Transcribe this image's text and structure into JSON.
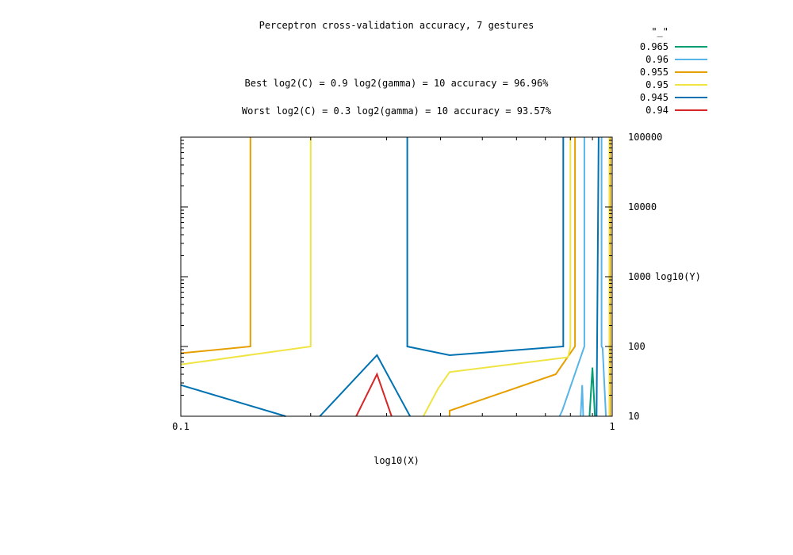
{
  "chart_data": {
    "type": "contour",
    "title": "Perceptron cross-validation accuracy, 7 gestures",
    "annotations": [
      "Best log2(C) = 0.9  log2(gamma) = 10  accuracy = 96.96%",
      "Worst log2(C) = 0.3  log2(gamma) = 10   accuracy = 93.57%"
    ],
    "xlabel": "log10(X)",
    "ylabel": "log10(Y)",
    "x_scale": "log",
    "y_scale": "log",
    "xlim": [
      0.1,
      1
    ],
    "ylim": [
      10,
      100000
    ],
    "x_tick_labels": [
      "0.1",
      "1"
    ],
    "y_tick_labels": [
      "10",
      "100",
      "1000",
      "10000",
      "100000"
    ],
    "legend_title": "\"_\"",
    "legend_position": "top-right",
    "series": [
      {
        "name": "0.965",
        "color": "#009e73",
        "lines": [
          [
            [
              0.886,
              10
            ],
            [
              0.9,
              50
            ],
            [
              0.912,
              10
            ]
          ]
        ]
      },
      {
        "name": "0.96",
        "color": "#56b4e9",
        "lines": [
          [
            [
              0.845,
              10
            ],
            [
              0.852,
              28
            ],
            [
              0.857,
              10
            ]
          ],
          [
            [
              0.755,
              10
            ],
            [
              0.766,
              12
            ],
            [
              0.862,
              100
            ],
            [
              0.862,
              100000
            ]
          ],
          [
            [
              0.945,
              100000
            ],
            [
              0.945,
              100
            ],
            [
              0.95,
              95
            ],
            [
              0.967,
              10
            ]
          ]
        ]
      },
      {
        "name": "0.955",
        "color": "#e69f00",
        "lines": [
          [
            [
              0.1,
              80
            ],
            [
              0.145,
              100
            ],
            [
              0.145,
              100000
            ]
          ],
          [
            [
              0.42,
              10
            ],
            [
              0.42,
              12
            ],
            [
              0.74,
              40
            ],
            [
              0.82,
              100
            ],
            [
              0.82,
              100000
            ]
          ],
          [
            [
              0.99,
              10
            ],
            [
              0.99,
              100000
            ]
          ]
        ]
      },
      {
        "name": "0.95",
        "color": "#f0e442",
        "lines": [
          [
            [
              0.1,
              55
            ],
            [
              0.2,
              100
            ],
            [
              0.2,
              100000
            ]
          ],
          [
            [
              0.365,
              10
            ],
            [
              0.395,
              25
            ],
            [
              0.42,
              43
            ],
            [
              0.79,
              70
            ],
            [
              0.8,
              100
            ],
            [
              0.8,
              100000
            ]
          ],
          [
            [
              0.985,
              10
            ],
            [
              0.985,
              100000
            ]
          ]
        ]
      },
      {
        "name": "0.945",
        "color": "#0072b2",
        "lines": [
          [
            [
              0.1,
              28
            ],
            [
              0.175,
              10
            ]
          ],
          [
            [
              0.21,
              10
            ],
            [
              0.285,
              75
            ],
            [
              0.34,
              10
            ]
          ],
          [
            [
              0.335,
              100000
            ],
            [
              0.335,
              100
            ],
            [
              0.42,
              75
            ],
            [
              0.77,
              100
            ],
            [
              0.77,
              100000
            ]
          ],
          [
            [
              0.92,
              10
            ],
            [
              0.93,
              100000
            ]
          ]
        ]
      },
      {
        "name": "0.94",
        "color": "#d62728",
        "lines": [
          [
            [
              0.255,
              10
            ],
            [
              0.285,
              40
            ],
            [
              0.308,
              10
            ]
          ]
        ]
      }
    ]
  }
}
